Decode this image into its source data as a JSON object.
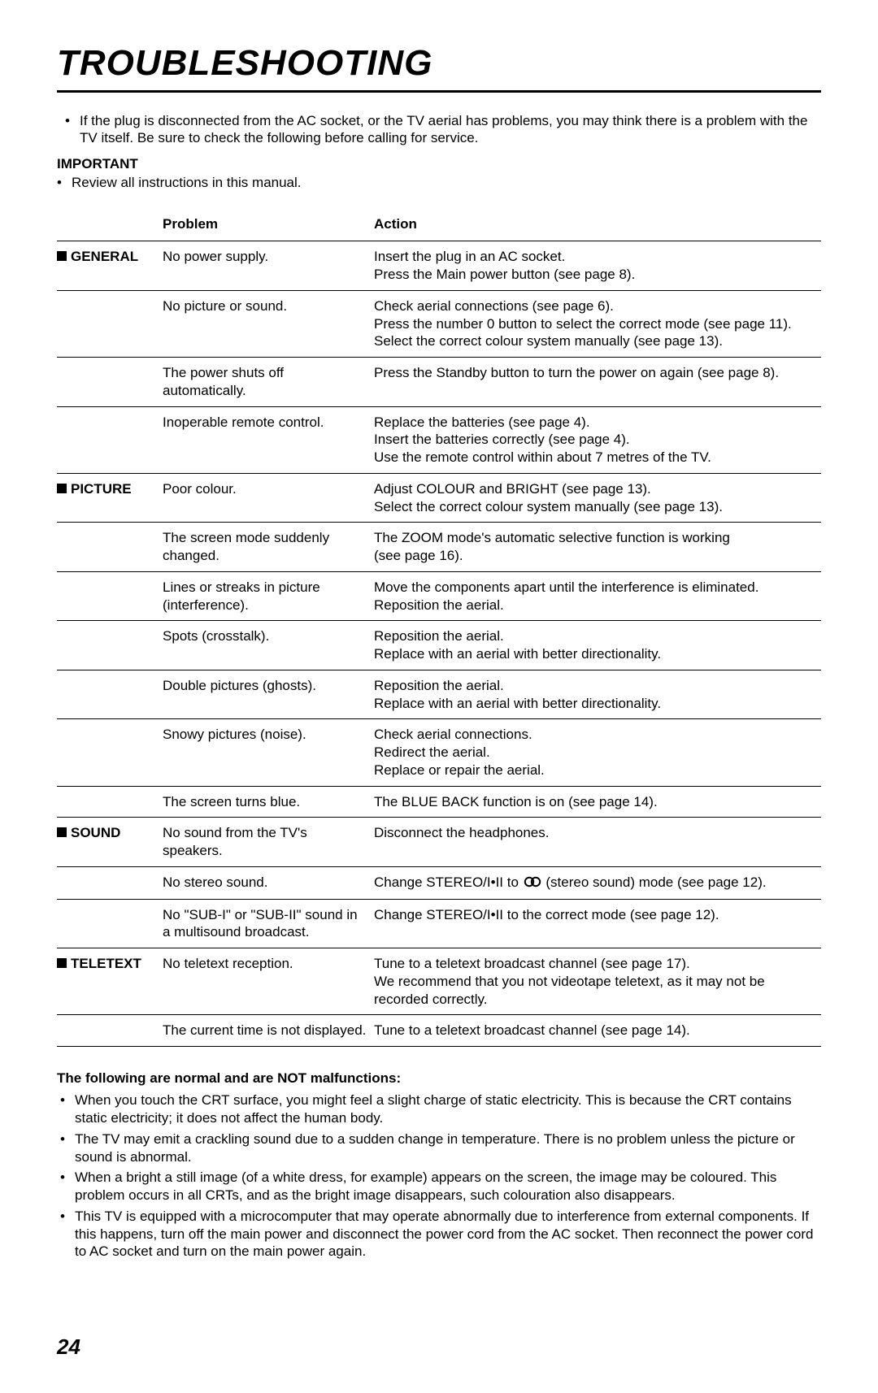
{
  "title": "TROUBLESHOOTING",
  "intro_bullet": "•",
  "intro_text": "If the plug is disconnected from the AC socket, or the TV aerial has problems, you may think there is a problem with the TV itself.  Be sure to check the following before calling for service.",
  "important_label": "IMPORTANT",
  "review_bullet": "•",
  "review_text": "Review all instructions in this manual.",
  "headers": {
    "problem": "Problem",
    "action": "Action"
  },
  "sections": {
    "general": {
      "label": "GENERAL",
      "rows": [
        {
          "problem": "No power supply.",
          "action": "Insert the plug in an AC socket.\nPress the Main power button (see page 8)."
        },
        {
          "problem": "No picture or sound.",
          "action": "Check aerial connections (see page 6).\nPress the number 0 button to select the correct mode (see page 11).\nSelect the correct colour system manually (see page 13)."
        },
        {
          "problem": "The power shuts off automatically.",
          "action": "Press the Standby button to turn the power on again (see page 8)."
        },
        {
          "problem": "Inoperable remote control.",
          "action": "Replace the batteries (see page 4).\nInsert the batteries correctly (see page 4).\nUse the remote control within about 7 metres of the TV."
        }
      ]
    },
    "picture": {
      "label": "PICTURE",
      "rows": [
        {
          "problem": "Poor colour.",
          "action": "Adjust COLOUR and BRIGHT (see page 13).\nSelect the correct colour system manually (see page 13)."
        },
        {
          "problem": "The screen mode suddenly changed.",
          "action": "The ZOOM mode's automatic selective function is working\n(see page 16)."
        },
        {
          "problem": "Lines or streaks in picture (interference).",
          "action": "Move the components apart until the interference is eliminated.\nReposition the aerial."
        },
        {
          "problem": "Spots (crosstalk).",
          "action": "Reposition the aerial.\nReplace with an aerial with better directionality."
        },
        {
          "problem": "Double pictures (ghosts).",
          "action": "Reposition the aerial.\nReplace with an aerial with better directionality."
        },
        {
          "problem": "Snowy pictures (noise).",
          "action": "Check aerial connections.\nRedirect the aerial.\nReplace or repair the aerial."
        },
        {
          "problem": "The screen turns blue.",
          "action": "The BLUE BACK function is on (see page 14)."
        }
      ]
    },
    "sound": {
      "label": "SOUND",
      "rows": [
        {
          "problem": "No sound from the TV's speakers.",
          "action": "Disconnect the headphones."
        },
        {
          "problem": "No stereo sound.",
          "action_pre": "Change STEREO/I•II to  ",
          "action_post": "  (stereo sound) mode (see page 12).",
          "has_symbol": true
        },
        {
          "problem": "No \"SUB-I\" or \"SUB-II\" sound in a multisound broadcast.",
          "action": "Change STEREO/I•II to the correct mode (see page 12)."
        }
      ]
    },
    "teletext": {
      "label": "TELETEXT",
      "rows": [
        {
          "problem": "No teletext reception.",
          "action": "Tune to a teletext broadcast channel (see page 17).\nWe recommend that you not videotape teletext, as it may not be recorded correctly."
        },
        {
          "problem": "The current time is not displayed.",
          "action": "Tune to a teletext broadcast channel (see page 14)."
        }
      ]
    }
  },
  "notes_heading": "The following are normal and are NOT malfunctions:",
  "notes": [
    "When you touch the CRT surface, you might feel a slight charge of static electricity.  This is because the CRT contains static electricity;  it does not affect the human body.",
    "The TV may emit a crackling sound due to a sudden change in temperature.  There is no problem unless the picture or sound is abnormal.",
    "When a bright a still image (of a white dress, for example) appears on the screen, the image may be coloured.  This problem occurs in all CRTs, and as the bright image disappears, such colouration also disappears.",
    "This TV is equipped with a microcomputer that may operate abnormally due to interference from external components.  If this happens, turn off the main power and disconnect the power cord from the AC socket.  Then reconnect the power cord to AC socket and turn on the main power again."
  ],
  "page_number": "24"
}
